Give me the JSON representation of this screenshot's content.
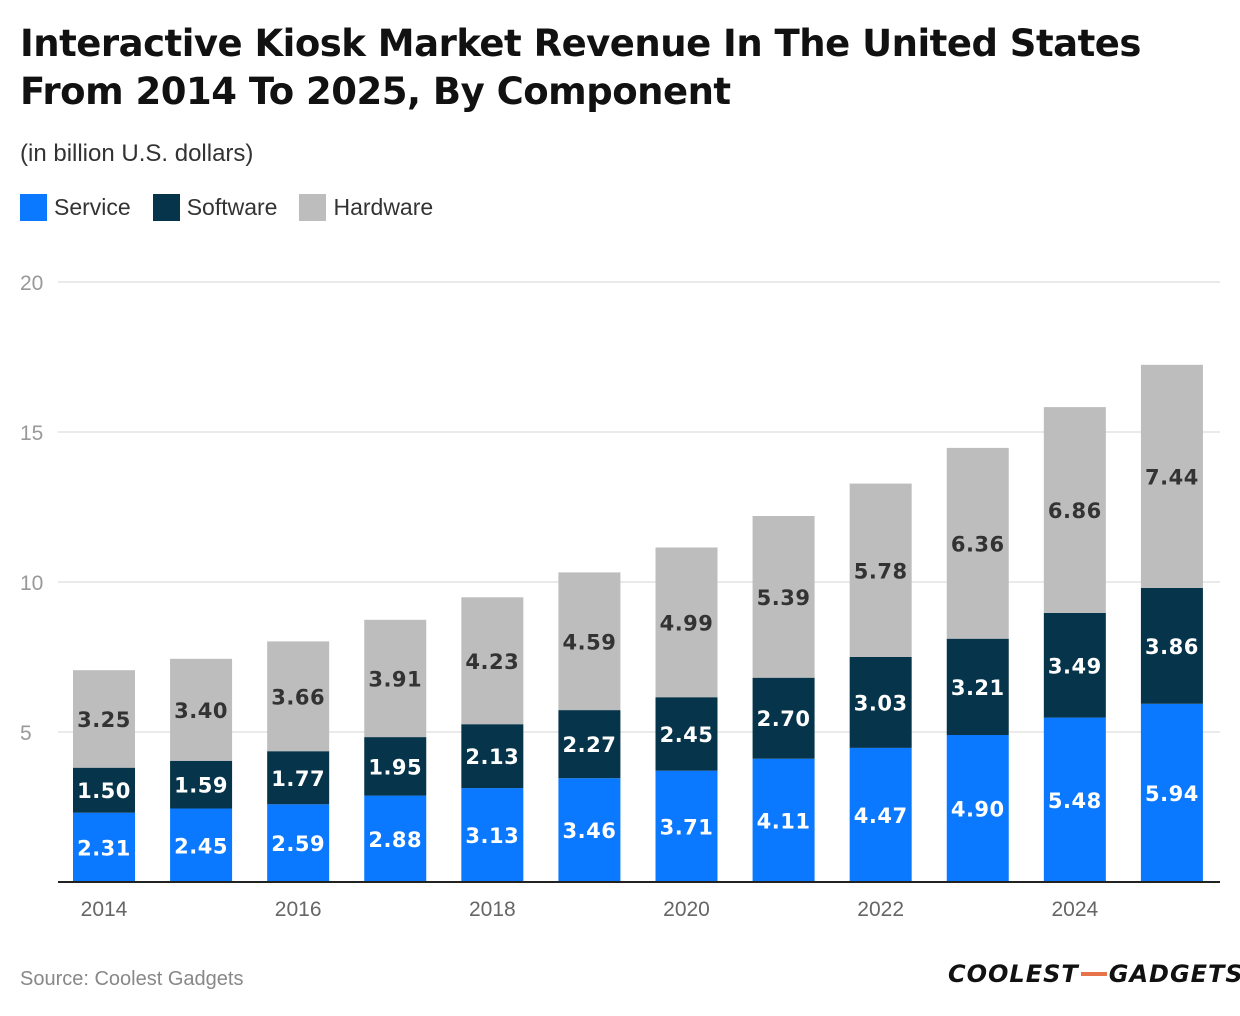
{
  "title": "Interactive Kiosk Market Revenue In The United States From 2014 To 2025, By Component",
  "subtitle": "(in billion U.S. dollars)",
  "legend": [
    {
      "label": "Service",
      "color": "#0a78ff"
    },
    {
      "label": "Software",
      "color": "#06344a"
    },
    {
      "label": "Hardware",
      "color": "#bdbdbd"
    }
  ],
  "source": "Source: Coolest Gadgets",
  "logo": {
    "part1": "COOLEST",
    "part2": "GADGETS"
  },
  "chart_data": {
    "type": "bar",
    "stacked": true,
    "categories": [
      "2014",
      "2015",
      "2016",
      "2017",
      "2018",
      "2019",
      "2020",
      "2021",
      "2022",
      "2023",
      "2024",
      "2025"
    ],
    "x_tick_labels": [
      "2014",
      "",
      "2016",
      "",
      "2018",
      "",
      "2020",
      "",
      "2022",
      "",
      "2024",
      ""
    ],
    "series": [
      {
        "name": "Service",
        "color": "#0a78ff",
        "values": [
          2.31,
          2.45,
          2.59,
          2.88,
          3.13,
          3.46,
          3.71,
          4.11,
          4.47,
          4.9,
          5.48,
          5.94
        ]
      },
      {
        "name": "Software",
        "color": "#06344a",
        "values": [
          1.5,
          1.59,
          1.77,
          1.95,
          2.13,
          2.27,
          2.45,
          2.7,
          3.03,
          3.21,
          3.49,
          3.86
        ]
      },
      {
        "name": "Hardware",
        "color": "#bdbdbd",
        "values": [
          3.25,
          3.4,
          3.66,
          3.91,
          4.23,
          4.59,
          4.99,
          5.39,
          5.78,
          6.36,
          6.86,
          7.44
        ]
      }
    ],
    "ylim": [
      0,
      20
    ],
    "yticks": [
      5,
      10,
      15,
      20
    ],
    "grid": true,
    "xlabel": "",
    "ylabel": ""
  }
}
